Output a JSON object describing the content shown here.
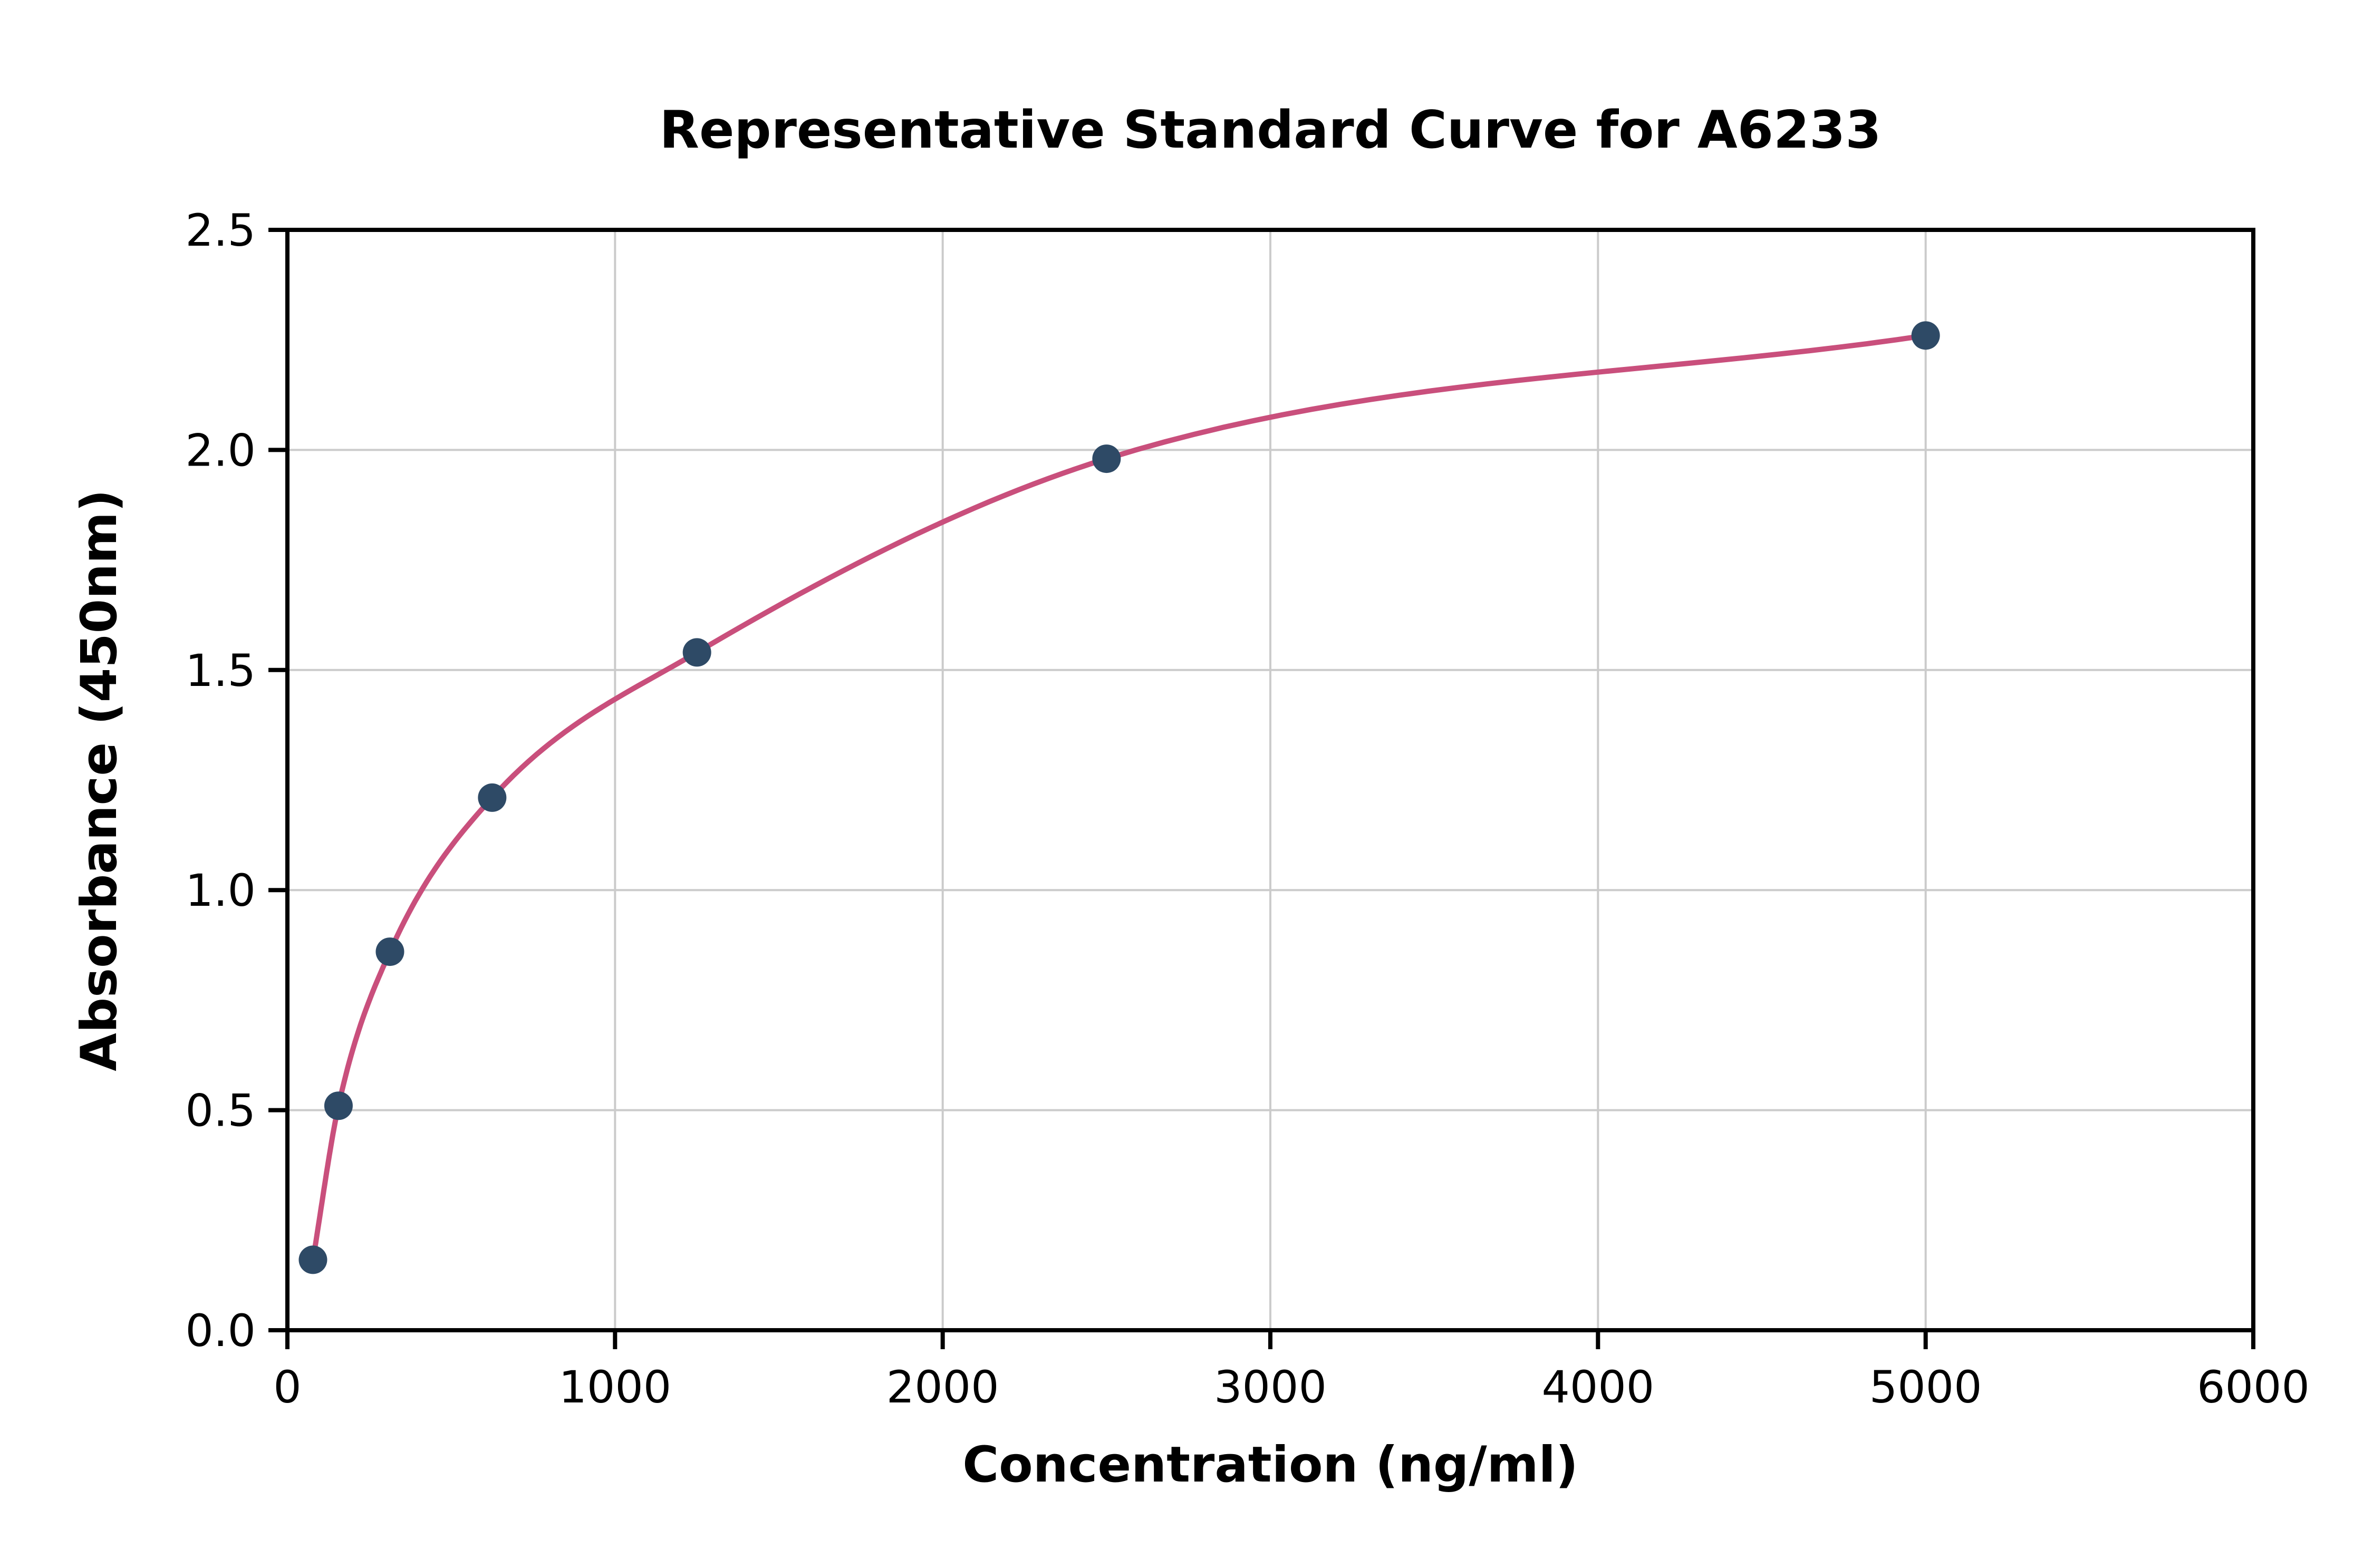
{
  "page": {
    "background": "#ffffff"
  },
  "chart_data": {
    "type": "scatter",
    "title": "Representative Standard Curve for A6233",
    "xlabel": "Concentration (ng/ml)",
    "ylabel": "Absorbance (450nm)",
    "xlim": [
      0,
      6000
    ],
    "ylim": [
      0,
      2.5
    ],
    "xticks": [
      0,
      1000,
      2000,
      3000,
      4000,
      5000,
      6000
    ],
    "xtick_labels": [
      "0",
      "1000",
      "2000",
      "3000",
      "4000",
      "5000",
      "6000"
    ],
    "yticks": [
      0.0,
      0.5,
      1.0,
      1.5,
      2.0,
      2.5
    ],
    "ytick_labels": [
      "0.0",
      "0.5",
      "1.0",
      "1.5",
      "2.0",
      "2.5"
    ],
    "grid": true,
    "legend": "none",
    "points": [
      {
        "x": 78,
        "y": 0.16
      },
      {
        "x": 156,
        "y": 0.51
      },
      {
        "x": 313,
        "y": 0.86
      },
      {
        "x": 625,
        "y": 1.21
      },
      {
        "x": 1250,
        "y": 1.54
      },
      {
        "x": 2500,
        "y": 1.98
      },
      {
        "x": 5000,
        "y": 2.26
      }
    ],
    "curve_fit": "smooth curve through standard points",
    "colors": {
      "point": "#2e4a66",
      "line": "#c94f7c",
      "grid": "#cbcbcb",
      "axis": "#000000",
      "text": "#000000"
    }
  }
}
